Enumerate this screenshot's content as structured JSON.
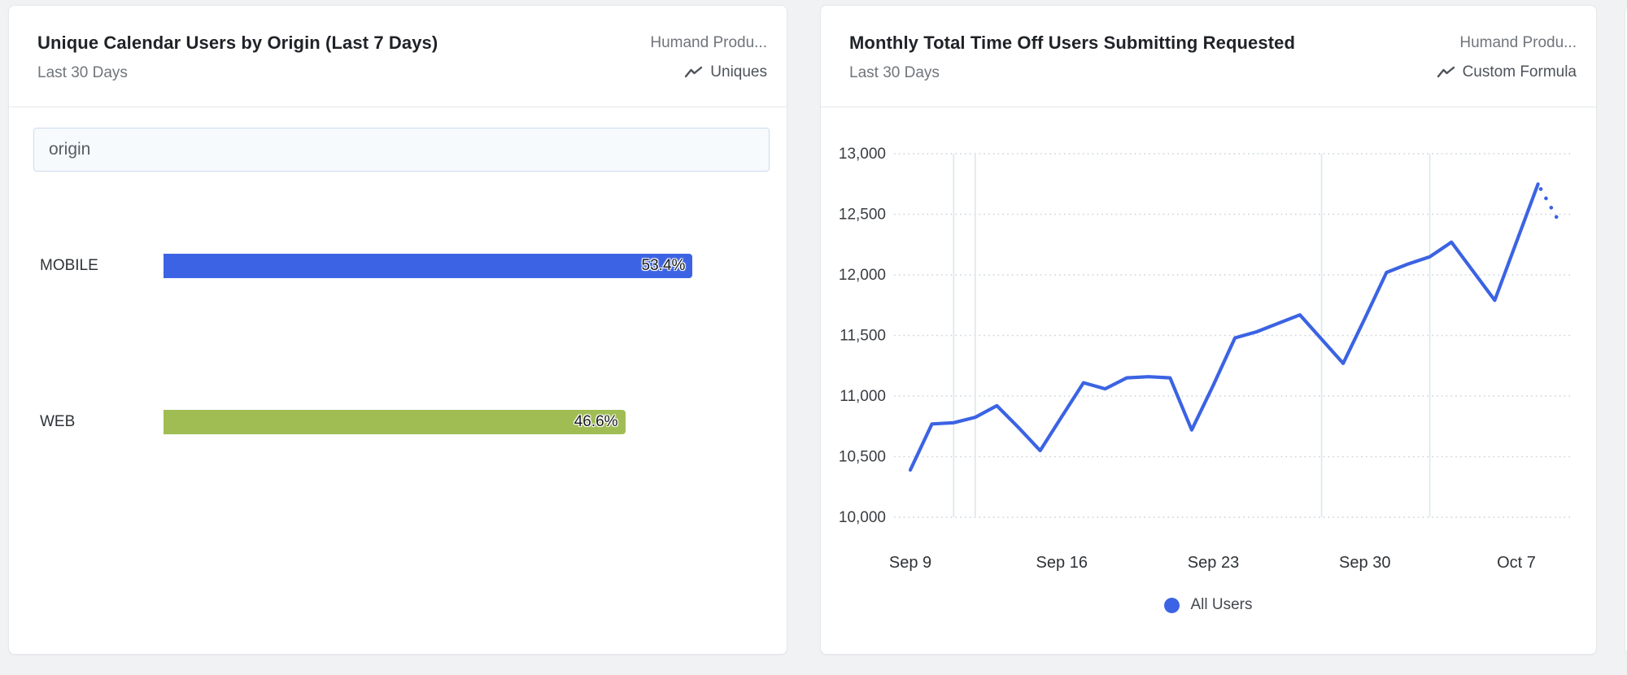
{
  "page": {
    "background": "#f1f2f4"
  },
  "cards": [
    {
      "title": "Unique Calendar Users by Origin (Last 7 Days)",
      "subtitle": "Last 30 Days",
      "source": "Humand Produ...",
      "metric_label": "Uniques",
      "filter_value": "origin"
    },
    {
      "title": "Monthly Total Time Off Users Submitting Requested",
      "subtitle": "Last 30 Days",
      "source": "Humand Produ...",
      "metric_label": "Custom Formula"
    }
  ],
  "chart_data": [
    {
      "type": "bar",
      "orientation": "horizontal",
      "title": "Unique Calendar Users by Origin (Last 7 Days)",
      "categories": [
        "MOBILE",
        "WEB"
      ],
      "values": [
        53.4,
        46.6
      ],
      "value_labels": [
        "53.4%",
        "46.6%"
      ],
      "colors": [
        "#3c63e4",
        "#9fbd52"
      ],
      "xlim": [
        0,
        61
      ],
      "grid": "off"
    },
    {
      "type": "line",
      "title": "Monthly Total Time Off Users Submitting Requested",
      "x": [
        "Sep 9",
        "Sep 10",
        "Sep 11",
        "Sep 12",
        "Sep 13",
        "Sep 14",
        "Sep 15",
        "Sep 16",
        "Sep 17",
        "Sep 18",
        "Sep 19",
        "Sep 20",
        "Sep 21",
        "Sep 22",
        "Sep 23",
        "Sep 24",
        "Sep 25",
        "Sep 26",
        "Sep 27",
        "Sep 28",
        "Sep 29",
        "Sep 30",
        "Oct 1",
        "Oct 2",
        "Oct 3",
        "Oct 4",
        "Oct 5",
        "Oct 6",
        "Oct 7",
        "Oct 8",
        "Oct 9"
      ],
      "series": [
        {
          "name": "All Users",
          "color": "#3b63e3",
          "values": [
            10390,
            10770,
            10780,
            10825,
            10920,
            10740,
            10550,
            10830,
            11110,
            11060,
            11150,
            11160,
            11150,
            10720,
            11090,
            11480,
            11530,
            11600,
            11670,
            11470,
            11270,
            11640,
            12020,
            12090,
            12150,
            12270,
            12030,
            11790,
            12270,
            12750,
            12430
          ],
          "dotted_tail_points": 1
        }
      ],
      "ylim": [
        10000,
        13000
      ],
      "ytick_labels": [
        "13,000",
        "12,500",
        "12,000",
        "11,500",
        "11,000",
        "10,500",
        "10,000"
      ],
      "xtick_labels": [
        "Sep 9",
        "Sep 16",
        "Sep 23",
        "Sep 30",
        "Oct 7"
      ],
      "xtick_indices": [
        0,
        7,
        14,
        21,
        28
      ],
      "vertical_gridline_indices": [
        2,
        3,
        19,
        24
      ],
      "grid": "dotted-horizontal",
      "gridline_color": "#c9d3da",
      "vertical_line_color": "#dde7ec",
      "legend": {
        "label": "All Users",
        "position": "bottom"
      }
    }
  ]
}
